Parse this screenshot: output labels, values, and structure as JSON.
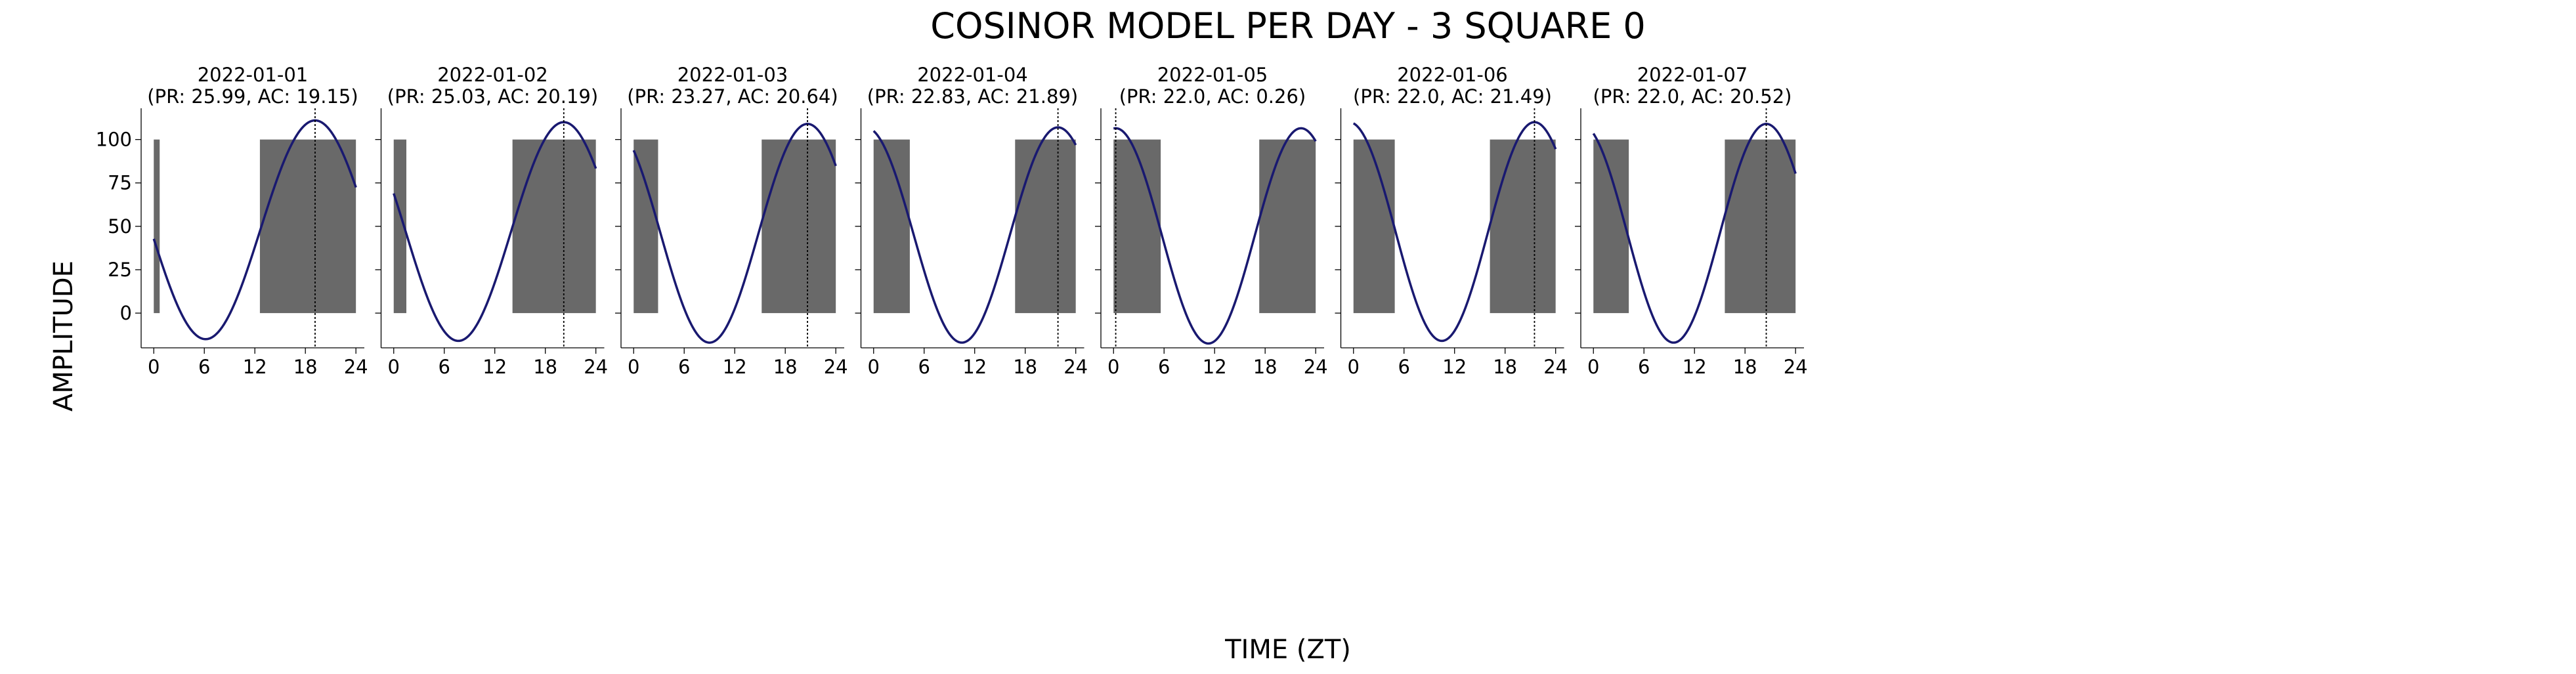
{
  "figure": {
    "title": "COSINOR MODEL PER DAY - 3 SQUARE 0",
    "xlabel": "TIME (ZT)",
    "ylabel": "AMPLITUDE"
  },
  "colors": {
    "curve": "#191970",
    "activity_bar": "#696969",
    "acrophase_line": "#000000",
    "axis": "#000000"
  },
  "chart_data": [
    {
      "type": "line",
      "title": "2022-01-01\n(PR: 25.99, AC: 19.15)",
      "date": "2022-01-01",
      "period": 25.99,
      "acrophase": 19.15,
      "xlim": [
        -1.5,
        25
      ],
      "ylim": [
        -20,
        118
      ],
      "xticks": [
        0,
        6,
        12,
        18,
        24
      ],
      "yticks": [
        0,
        25,
        50,
        75,
        100
      ],
      "cosinor": {
        "mesor": 48,
        "amplitude": 63,
        "x_start": 0,
        "x_end": 24
      },
      "activity_bars": [
        {
          "start": 0,
          "end": 0.7,
          "value": 100
        },
        {
          "start": 12.6,
          "end": 24,
          "value": 100
        }
      ]
    },
    {
      "type": "line",
      "title": "2022-01-02\n(PR: 25.03, AC: 20.19)",
      "date": "2022-01-02",
      "period": 25.03,
      "acrophase": 20.19,
      "xlim": [
        -1.5,
        25
      ],
      "ylim": [
        -20,
        118
      ],
      "xticks": [
        0,
        6,
        12,
        18,
        24
      ],
      "yticks": [
        0,
        25,
        50,
        75,
        100
      ],
      "cosinor": {
        "mesor": 47,
        "amplitude": 63,
        "x_start": 0,
        "x_end": 24
      },
      "activity_bars": [
        {
          "start": 0,
          "end": 1.5,
          "value": 100
        },
        {
          "start": 14.1,
          "end": 24,
          "value": 100
        }
      ]
    },
    {
      "type": "line",
      "title": "2022-01-03\n(PR: 23.27, AC: 20.64)",
      "date": "2022-01-03",
      "period": 23.27,
      "acrophase": 20.64,
      "xlim": [
        -1.5,
        25
      ],
      "ylim": [
        -20,
        118
      ],
      "xticks": [
        0,
        6,
        12,
        18,
        24
      ],
      "yticks": [
        0,
        25,
        50,
        75,
        100
      ],
      "cosinor": {
        "mesor": 46,
        "amplitude": 63,
        "x_start": 0,
        "x_end": 24
      },
      "activity_bars": [
        {
          "start": 0,
          "end": 2.9,
          "value": 100
        },
        {
          "start": 15.2,
          "end": 24,
          "value": 100
        }
      ]
    },
    {
      "type": "line",
      "title": "2022-01-04\n(PR: 22.83, AC: 21.89)",
      "date": "2022-01-04",
      "period": 22.83,
      "acrophase": 21.89,
      "xlim": [
        -1.5,
        25
      ],
      "ylim": [
        -20,
        118
      ],
      "xticks": [
        0,
        6,
        12,
        18,
        24
      ],
      "yticks": [
        0,
        25,
        50,
        75,
        100
      ],
      "cosinor": {
        "mesor": 45,
        "amplitude": 62,
        "x_start": 0,
        "x_end": 24
      },
      "activity_bars": [
        {
          "start": 0,
          "end": 4.3,
          "value": 100
        },
        {
          "start": 16.8,
          "end": 24,
          "value": 100
        }
      ]
    },
    {
      "type": "line",
      "title": "2022-01-05\n(PR: 22.0, AC: 0.26)",
      "date": "2022-01-05",
      "period": 22.0,
      "acrophase": 0.26,
      "xlim": [
        -1.5,
        25
      ],
      "ylim": [
        -20,
        118
      ],
      "xticks": [
        0,
        6,
        12,
        18,
        24
      ],
      "yticks": [
        0,
        25,
        50,
        75,
        100
      ],
      "cosinor": {
        "mesor": 44.5,
        "amplitude": 62,
        "x_start": 0,
        "x_end": 24
      },
      "activity_bars": [
        {
          "start": 0,
          "end": 5.6,
          "value": 100
        },
        {
          "start": 17.3,
          "end": 24,
          "value": 100
        }
      ]
    },
    {
      "type": "line",
      "title": "2022-01-06\n(PR: 22.0, AC: 21.49)",
      "date": "2022-01-06",
      "period": 22.0,
      "acrophase": 21.49,
      "xlim": [
        -1.5,
        25
      ],
      "ylim": [
        -20,
        118
      ],
      "xticks": [
        0,
        6,
        12,
        18,
        24
      ],
      "yticks": [
        0,
        25,
        50,
        75,
        100
      ],
      "cosinor": {
        "mesor": 47,
        "amplitude": 63,
        "x_start": 0,
        "x_end": 24
      },
      "activity_bars": [
        {
          "start": 0,
          "end": 4.9,
          "value": 100
        },
        {
          "start": 16.2,
          "end": 24,
          "value": 100
        }
      ]
    },
    {
      "type": "line",
      "title": "2022-01-07\n(PR: 22.0, AC: 20.52)",
      "date": "2022-01-07",
      "period": 22.0,
      "acrophase": 20.52,
      "xlim": [
        -1.5,
        25
      ],
      "ylim": [
        -20,
        118
      ],
      "xticks": [
        0,
        6,
        12,
        18,
        24
      ],
      "yticks": [
        0,
        25,
        50,
        75,
        100
      ],
      "cosinor": {
        "mesor": 46,
        "amplitude": 63,
        "x_start": 0,
        "x_end": 24
      },
      "activity_bars": [
        {
          "start": 0,
          "end": 4.2,
          "value": 100
        },
        {
          "start": 15.6,
          "end": 24,
          "value": 100
        }
      ]
    }
  ]
}
